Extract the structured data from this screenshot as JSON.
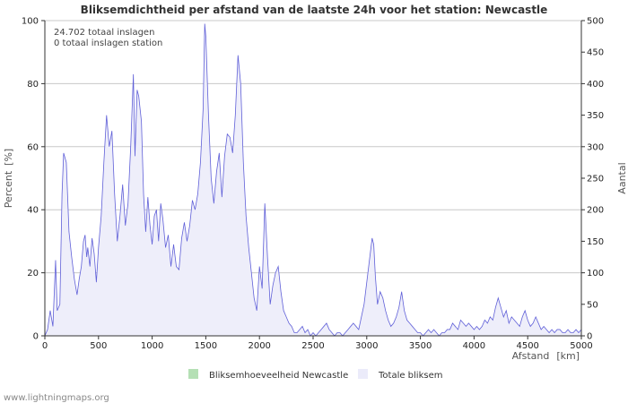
{
  "chart_data": {
    "type": "area",
    "title": "Bliksemdichtheid per afstand van de laatste 24h voor het station: Newcastle",
    "xlabel": "Afstand",
    "xunit": "[km]",
    "ylabel_left": "Percent",
    "ylabel_left_unit": "[%]",
    "ylabel_right": "Aantal",
    "xlim": [
      0,
      5000
    ],
    "ylim_left": [
      0,
      100
    ],
    "ylim_right": [
      0,
      500
    ],
    "x_ticks": [
      "0",
      "500",
      "1000",
      "1500",
      "2000",
      "2500",
      "3000",
      "3500",
      "4000",
      "4500",
      "5000"
    ],
    "y_left_ticks": [
      "0",
      "20",
      "40",
      "60",
      "80",
      "100"
    ],
    "y_right_ticks": [
      "0",
      "50",
      "100",
      "150",
      "200",
      "250",
      "300",
      "350",
      "400",
      "450",
      "500"
    ],
    "annotations": [
      "24.702 totaal inslagen",
      "0 totaal inslagen station"
    ],
    "legend": [
      {
        "label": "Bliksemhoeveelheid Newcastle",
        "color": "#b5e0b5"
      },
      {
        "label": "Totale bliksem",
        "color": "#ebebfa"
      }
    ],
    "series": [
      {
        "name": "Totale bliksem",
        "unit": "percent",
        "line_color": "#6060d8",
        "fill_color": "#eeeefa",
        "points": [
          [
            0,
            0
          ],
          [
            25,
            2
          ],
          [
            50,
            8
          ],
          [
            75,
            3
          ],
          [
            100,
            24
          ],
          [
            115,
            8
          ],
          [
            140,
            10
          ],
          [
            160,
            45
          ],
          [
            175,
            58
          ],
          [
            200,
            55
          ],
          [
            225,
            33
          ],
          [
            250,
            25
          ],
          [
            275,
            18
          ],
          [
            300,
            13
          ],
          [
            320,
            18
          ],
          [
            340,
            22
          ],
          [
            360,
            30
          ],
          [
            375,
            32
          ],
          [
            390,
            25
          ],
          [
            400,
            28
          ],
          [
            420,
            22
          ],
          [
            440,
            31
          ],
          [
            460,
            26
          ],
          [
            480,
            17
          ],
          [
            500,
            28
          ],
          [
            525,
            38
          ],
          [
            550,
            55
          ],
          [
            575,
            70
          ],
          [
            600,
            60
          ],
          [
            625,
            65
          ],
          [
            650,
            45
          ],
          [
            675,
            30
          ],
          [
            700,
            38
          ],
          [
            725,
            48
          ],
          [
            750,
            35
          ],
          [
            775,
            42
          ],
          [
            800,
            60
          ],
          [
            825,
            83
          ],
          [
            840,
            57
          ],
          [
            860,
            78
          ],
          [
            875,
            76
          ],
          [
            900,
            68
          ],
          [
            920,
            45
          ],
          [
            940,
            33
          ],
          [
            960,
            44
          ],
          [
            980,
            35
          ],
          [
            1000,
            29
          ],
          [
            1020,
            38
          ],
          [
            1040,
            40
          ],
          [
            1060,
            30
          ],
          [
            1080,
            42
          ],
          [
            1100,
            37
          ],
          [
            1125,
            28
          ],
          [
            1150,
            32
          ],
          [
            1175,
            22
          ],
          [
            1200,
            29
          ],
          [
            1225,
            22
          ],
          [
            1250,
            21
          ],
          [
            1275,
            31
          ],
          [
            1300,
            36
          ],
          [
            1325,
            30
          ],
          [
            1350,
            35
          ],
          [
            1375,
            43
          ],
          [
            1400,
            40
          ],
          [
            1425,
            45
          ],
          [
            1450,
            55
          ],
          [
            1475,
            72
          ],
          [
            1490,
            99
          ],
          [
            1500,
            95
          ],
          [
            1525,
            70
          ],
          [
            1550,
            50
          ],
          [
            1575,
            42
          ],
          [
            1600,
            52
          ],
          [
            1625,
            58
          ],
          [
            1650,
            44
          ],
          [
            1675,
            57
          ],
          [
            1700,
            64
          ],
          [
            1725,
            63
          ],
          [
            1750,
            58
          ],
          [
            1775,
            70
          ],
          [
            1800,
            89
          ],
          [
            1825,
            80
          ],
          [
            1850,
            55
          ],
          [
            1875,
            38
          ],
          [
            1900,
            28
          ],
          [
            1925,
            20
          ],
          [
            1950,
            12
          ],
          [
            1975,
            8
          ],
          [
            2000,
            22
          ],
          [
            2025,
            15
          ],
          [
            2050,
            42
          ],
          [
            2075,
            25
          ],
          [
            2100,
            10
          ],
          [
            2125,
            16
          ],
          [
            2150,
            20
          ],
          [
            2175,
            22
          ],
          [
            2200,
            14
          ],
          [
            2225,
            8
          ],
          [
            2250,
            6
          ],
          [
            2275,
            4
          ],
          [
            2300,
            3
          ],
          [
            2325,
            1
          ],
          [
            2350,
            1
          ],
          [
            2375,
            2
          ],
          [
            2400,
            3
          ],
          [
            2425,
            1
          ],
          [
            2450,
            2
          ],
          [
            2475,
            0
          ],
          [
            2500,
            1
          ],
          [
            2525,
            0
          ],
          [
            2550,
            1
          ],
          [
            2575,
            2
          ],
          [
            2600,
            3
          ],
          [
            2625,
            4
          ],
          [
            2650,
            2
          ],
          [
            2675,
            1
          ],
          [
            2700,
            0
          ],
          [
            2725,
            1
          ],
          [
            2750,
            1
          ],
          [
            2775,
            0
          ],
          [
            2800,
            1
          ],
          [
            2825,
            2
          ],
          [
            2850,
            3
          ],
          [
            2875,
            4
          ],
          [
            2900,
            3
          ],
          [
            2925,
            2
          ],
          [
            2950,
            6
          ],
          [
            2975,
            10
          ],
          [
            3000,
            17
          ],
          [
            3025,
            24
          ],
          [
            3050,
            31
          ],
          [
            3065,
            29
          ],
          [
            3080,
            19
          ],
          [
            3100,
            10
          ],
          [
            3125,
            14
          ],
          [
            3150,
            12
          ],
          [
            3175,
            8
          ],
          [
            3200,
            5
          ],
          [
            3225,
            3
          ],
          [
            3250,
            4
          ],
          [
            3275,
            6
          ],
          [
            3300,
            9
          ],
          [
            3325,
            14
          ],
          [
            3350,
            8
          ],
          [
            3375,
            5
          ],
          [
            3400,
            4
          ],
          [
            3425,
            3
          ],
          [
            3450,
            2
          ],
          [
            3475,
            1
          ],
          [
            3500,
            1
          ],
          [
            3525,
            0
          ],
          [
            3550,
            1
          ],
          [
            3575,
            2
          ],
          [
            3600,
            1
          ],
          [
            3625,
            2
          ],
          [
            3650,
            1
          ],
          [
            3675,
            0
          ],
          [
            3700,
            1
          ],
          [
            3725,
            1
          ],
          [
            3750,
            2
          ],
          [
            3775,
            2
          ],
          [
            3800,
            4
          ],
          [
            3825,
            3
          ],
          [
            3850,
            2
          ],
          [
            3875,
            5
          ],
          [
            3900,
            4
          ],
          [
            3925,
            3
          ],
          [
            3950,
            4
          ],
          [
            3975,
            3
          ],
          [
            4000,
            2
          ],
          [
            4025,
            3
          ],
          [
            4050,
            2
          ],
          [
            4075,
            3
          ],
          [
            4100,
            5
          ],
          [
            4125,
            4
          ],
          [
            4150,
            6
          ],
          [
            4175,
            5
          ],
          [
            4200,
            9
          ],
          [
            4225,
            12
          ],
          [
            4250,
            9
          ],
          [
            4275,
            6
          ],
          [
            4300,
            8
          ],
          [
            4325,
            4
          ],
          [
            4350,
            6
          ],
          [
            4375,
            5
          ],
          [
            4400,
            4
          ],
          [
            4425,
            3
          ],
          [
            4450,
            6
          ],
          [
            4475,
            8
          ],
          [
            4500,
            5
          ],
          [
            4525,
            3
          ],
          [
            4550,
            4
          ],
          [
            4575,
            6
          ],
          [
            4600,
            4
          ],
          [
            4625,
            2
          ],
          [
            4650,
            3
          ],
          [
            4675,
            2
          ],
          [
            4700,
            1
          ],
          [
            4725,
            2
          ],
          [
            4750,
            1
          ],
          [
            4775,
            2
          ],
          [
            4800,
            2
          ],
          [
            4825,
            1
          ],
          [
            4850,
            1
          ],
          [
            4875,
            2
          ],
          [
            4900,
            1
          ],
          [
            4925,
            1
          ],
          [
            4950,
            2
          ],
          [
            4975,
            1
          ],
          [
            5000,
            2
          ]
        ]
      },
      {
        "name": "Bliksemhoeveelheid Newcastle",
        "unit": "percent",
        "line_color": "#4caf50",
        "fill_color": "#b5e0b5",
        "points": []
      }
    ]
  },
  "footer": "www.lightningmaps.org"
}
